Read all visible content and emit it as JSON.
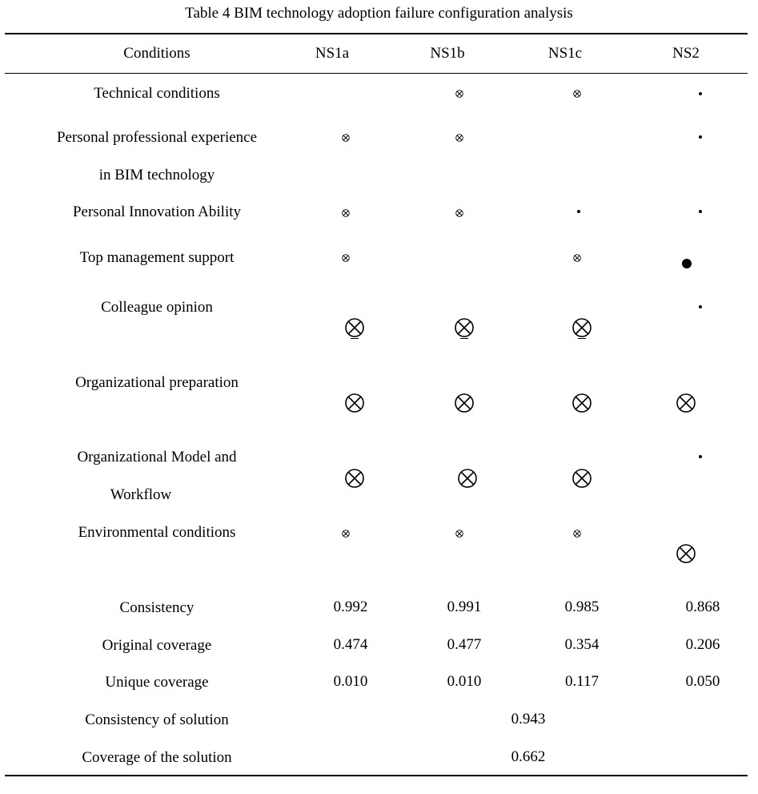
{
  "caption": "Table 4 BIM technology adoption failure configuration analysis",
  "headers": {
    "conditions": "Conditions",
    "ns1a": "NS1a",
    "ns1b": "NS1b",
    "ns1c": "NS1c",
    "ns2": "NS2"
  },
  "conditions": {
    "technical": "Technical conditions",
    "experience_line1": "Personal professional experience",
    "experience_line2": "in BIM technology",
    "innovation": "Personal Innovation Ability",
    "top_management": "Top management support",
    "colleague": "Colleague opinion",
    "org_preparation": "Organizational preparation",
    "org_model_line1": "Organizational Model and",
    "org_model_line2": "Workflow",
    "environmental": "Environmental conditions"
  },
  "legend_symbols": {
    "absent_peripheral": "small-circled-x-icon",
    "absent_core": "large-circled-x-icon",
    "present_peripheral": "small-dot-icon",
    "present_core": "large-dot-icon"
  },
  "metrics": {
    "consistency": {
      "label": "Consistency",
      "ns1a": "0.992",
      "ns1b": "0.991",
      "ns1c": "0.985",
      "ns2": "0.868"
    },
    "original_coverage": {
      "label": "Original coverage",
      "ns1a": "0.474",
      "ns1b": "0.477",
      "ns1c": "0.354",
      "ns2": "0.206"
    },
    "unique_coverage": {
      "label": "Unique coverage",
      "ns1a": "0.010",
      "ns1b": "0.010",
      "ns1c": "0.117",
      "ns2": "0.050"
    },
    "solution_consistency": {
      "label": "Consistency of solution",
      "value": "0.943"
    },
    "solution_coverage": {
      "label": "Coverage of the solution",
      "value": "0.662"
    }
  }
}
